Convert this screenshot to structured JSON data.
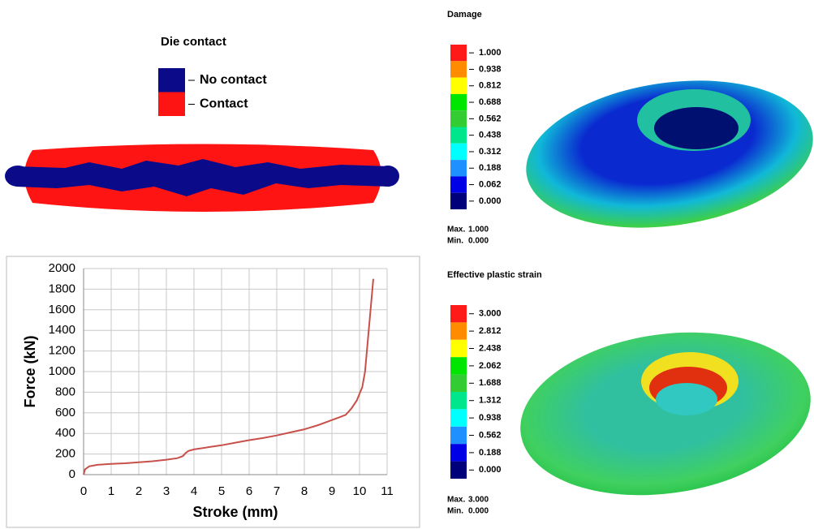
{
  "die_contact": {
    "title": "Die contact",
    "items": [
      {
        "label": "No contact",
        "color": "#0b0b8a"
      },
      {
        "label": "Contact",
        "color": "#ff1414"
      }
    ]
  },
  "chart_data": {
    "type": "line",
    "xlabel": "Stroke (mm)",
    "ylabel": "Force (kN)",
    "x": [
      0,
      0.05,
      0.2,
      0.5,
      1,
      1.5,
      2,
      2.5,
      3,
      3.4,
      3.6,
      3.7,
      3.8,
      4,
      4.5,
      5,
      5.5,
      6,
      6.5,
      7,
      7.5,
      8,
      8.5,
      9,
      9.3,
      9.5,
      9.7,
      9.9,
      10.1,
      10.2,
      10.3,
      10.4,
      10.45,
      10.5
    ],
    "values": [
      0,
      50,
      80,
      95,
      105,
      110,
      120,
      130,
      145,
      160,
      180,
      210,
      230,
      245,
      265,
      285,
      310,
      335,
      355,
      380,
      410,
      440,
      480,
      530,
      560,
      580,
      640,
      720,
      850,
      1000,
      1300,
      1600,
      1750,
      1900
    ],
    "color": "#c8504b",
    "xlim": [
      0,
      11
    ],
    "ylim": [
      0,
      2000
    ],
    "xticks": [
      0,
      1,
      2,
      3,
      4,
      5,
      6,
      7,
      8,
      9,
      10,
      11
    ],
    "yticks": [
      0,
      200,
      400,
      600,
      800,
      1000,
      1200,
      1400,
      1600,
      1800,
      2000
    ],
    "grid": true
  },
  "damage": {
    "title": "Damage",
    "levels": [
      {
        "label": "1.000",
        "color": "#ff1a1a"
      },
      {
        "label": "0.938",
        "color": "#ff8c00"
      },
      {
        "label": "0.812",
        "color": "#ffff00"
      },
      {
        "label": "0.688",
        "color": "#00e600"
      },
      {
        "label": "0.562",
        "color": "#33cc33"
      },
      {
        "label": "0.438",
        "color": "#00e68c"
      },
      {
        "label": "0.312",
        "color": "#00ffff"
      },
      {
        "label": "0.188",
        "color": "#1e90ff"
      },
      {
        "label": "0.062",
        "color": "#0000e6"
      },
      {
        "label": "0.000",
        "color": "#00007a"
      }
    ],
    "max_label": "Max.",
    "max": "1.000",
    "min_label": "Min.",
    "min": "0.000"
  },
  "strain": {
    "title": "Effective plastic strain",
    "levels": [
      {
        "label": "3.000",
        "color": "#ff1a1a"
      },
      {
        "label": "2.812",
        "color": "#ff8c00"
      },
      {
        "label": "2.438",
        "color": "#ffff00"
      },
      {
        "label": "2.062",
        "color": "#00e600"
      },
      {
        "label": "1.688",
        "color": "#33cc33"
      },
      {
        "label": "1.312",
        "color": "#00e68c"
      },
      {
        "label": "0.938",
        "color": "#00ffff"
      },
      {
        "label": "0.562",
        "color": "#1e90ff"
      },
      {
        "label": "0.188",
        "color": "#0000e6"
      },
      {
        "label": "0.000",
        "color": "#00007a"
      }
    ],
    "max_label": "Max.",
    "max": "3.000",
    "min_label": "Min.",
    "min": "0.000"
  }
}
